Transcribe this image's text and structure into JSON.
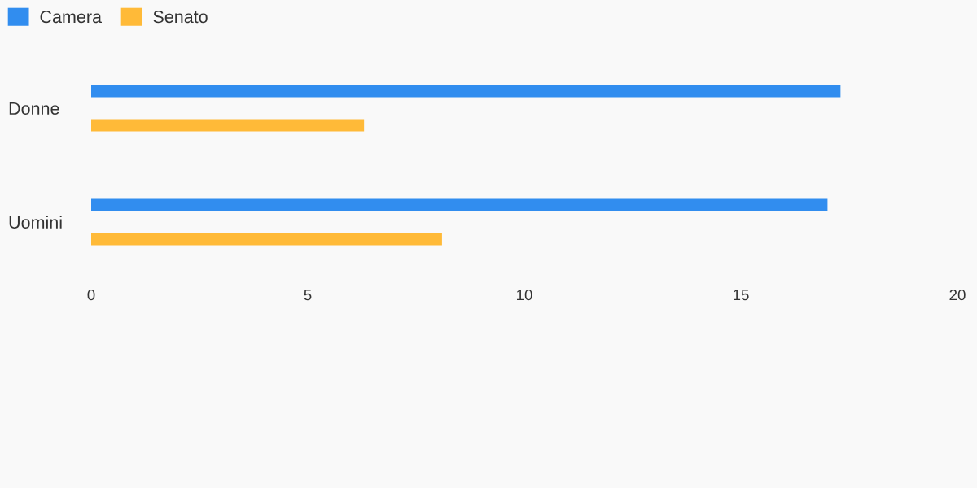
{
  "chart_data": {
    "type": "bar",
    "orientation": "horizontal",
    "categories": [
      "Donne",
      "Uomini"
    ],
    "series": [
      {
        "name": "Camera",
        "color": "#318def",
        "values": [
          17.3,
          17.0
        ]
      },
      {
        "name": "Senato",
        "color": "#ffba38",
        "values": [
          6.3,
          8.1
        ]
      }
    ],
    "xlim": [
      0,
      20
    ],
    "xticks": [
      0,
      5,
      10,
      15,
      20
    ],
    "legend": "top left"
  }
}
